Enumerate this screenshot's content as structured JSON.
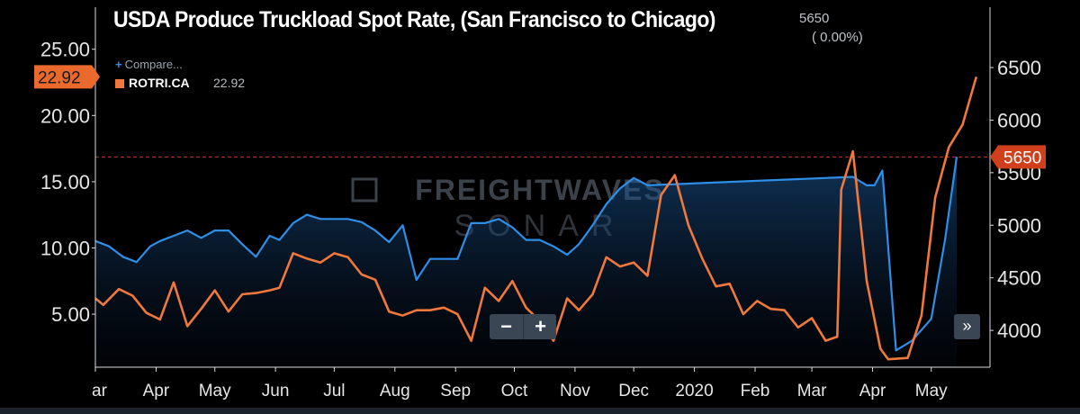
{
  "title": "USDA Produce Truckload Spot Rate, (San Francisco to Chicago)",
  "header_value": "5650",
  "header_change": "( 0.00%)",
  "legend": {
    "compare_label": "Compare...",
    "series_name": "ROTRI.CA",
    "series_value": "22.92"
  },
  "watermark": {
    "line1": "FREIGHTWAVES",
    "line2": "SONAR"
  },
  "controls": {
    "zoom_out": "−",
    "zoom_in": "+",
    "fast_forward": "»"
  },
  "colors": {
    "background": "#000000",
    "blue_series": "#2f8ee6",
    "orange_series": "#f0783c",
    "orange_badge": "#ea6a2e",
    "red_badge": "#d0401c",
    "reference_line": "#c0392b",
    "axis": "#dcdcdc",
    "tick_text": "#e6e6e6"
  },
  "chart_data": {
    "type": "line",
    "title": "USDA Produce Truckload Spot Rate, (San Francisco to Chicago)",
    "x_tick_labels": [
      "ar",
      "Apr",
      "May",
      "Jun",
      "Jul",
      "Aug",
      "Sep",
      "Oct",
      "Nov",
      "Dec",
      "2020",
      "Feb",
      "Mar",
      "Apr",
      "May"
    ],
    "x_tick_dates": [
      "2019-03-01",
      "2019-04-01",
      "2019-05-01",
      "2019-06-01",
      "2019-07-01",
      "2019-08-01",
      "2019-09-01",
      "2019-10-01",
      "2019-11-01",
      "2019-12-01",
      "2020-01-01",
      "2020-02-01",
      "2020-03-01",
      "2020-04-01",
      "2020-05-01"
    ],
    "x_range": [
      "2019-03-01",
      "2020-05-31"
    ],
    "left_axis": {
      "ticks": [
        "5.00",
        "10.00",
        "15.00",
        "20.00",
        "25.00"
      ],
      "range": [
        1.0,
        26.0
      ]
    },
    "right_axis": {
      "ticks": [
        "4000",
        "4500",
        "5000",
        "5500",
        "6000",
        "6500"
      ],
      "range": [
        3650,
        6800
      ]
    },
    "current_left_label": "22.92",
    "current_left_value": 22.92,
    "current_right_label": "5650",
    "current_right_value": 5650,
    "reference_line_value": 5650,
    "grid": false,
    "series": [
      {
        "name": "ROTRI.CA",
        "axis": "left",
        "color": "#f0783c",
        "points": [
          {
            "x": "2019-03-01",
            "y": 6.2
          },
          {
            "x": "2019-03-05",
            "y": 5.7
          },
          {
            "x": "2019-03-13",
            "y": 6.9
          },
          {
            "x": "2019-03-20",
            "y": 6.4
          },
          {
            "x": "2019-03-27",
            "y": 5.1
          },
          {
            "x": "2019-04-03",
            "y": 4.6
          },
          {
            "x": "2019-04-10",
            "y": 7.4
          },
          {
            "x": "2019-04-17",
            "y": 4.1
          },
          {
            "x": "2019-04-24",
            "y": 5.4
          },
          {
            "x": "2019-05-01",
            "y": 6.8
          },
          {
            "x": "2019-05-08",
            "y": 5.2
          },
          {
            "x": "2019-05-15",
            "y": 6.5
          },
          {
            "x": "2019-05-22",
            "y": 6.6
          },
          {
            "x": "2019-05-29",
            "y": 6.8
          },
          {
            "x": "2019-06-03",
            "y": 7.0
          },
          {
            "x": "2019-06-10",
            "y": 9.6
          },
          {
            "x": "2019-06-17",
            "y": 9.2
          },
          {
            "x": "2019-06-24",
            "y": 8.9
          },
          {
            "x": "2019-07-01",
            "y": 9.6
          },
          {
            "x": "2019-07-08",
            "y": 9.3
          },
          {
            "x": "2019-07-15",
            "y": 8.0
          },
          {
            "x": "2019-07-22",
            "y": 7.6
          },
          {
            "x": "2019-07-29",
            "y": 5.2
          },
          {
            "x": "2019-08-05",
            "y": 4.9
          },
          {
            "x": "2019-08-12",
            "y": 5.3
          },
          {
            "x": "2019-08-19",
            "y": 5.3
          },
          {
            "x": "2019-08-26",
            "y": 5.5
          },
          {
            "x": "2019-09-02",
            "y": 5.0
          },
          {
            "x": "2019-09-09",
            "y": 3.0
          },
          {
            "x": "2019-09-16",
            "y": 7.0
          },
          {
            "x": "2019-09-23",
            "y": 6.0
          },
          {
            "x": "2019-09-30",
            "y": 7.5
          },
          {
            "x": "2019-10-07",
            "y": 5.5
          },
          {
            "x": "2019-10-14",
            "y": 4.5
          },
          {
            "x": "2019-10-21",
            "y": 3.0
          },
          {
            "x": "2019-10-28",
            "y": 6.2
          },
          {
            "x": "2019-11-03",
            "y": 5.3
          },
          {
            "x": "2019-11-10",
            "y": 6.5
          },
          {
            "x": "2019-11-17",
            "y": 9.3
          },
          {
            "x": "2019-11-24",
            "y": 8.6
          },
          {
            "x": "2019-12-01",
            "y": 8.9
          },
          {
            "x": "2019-12-08",
            "y": 7.9
          },
          {
            "x": "2019-12-15",
            "y": 14.0
          },
          {
            "x": "2019-12-22",
            "y": 15.5
          },
          {
            "x": "2019-12-29",
            "y": 11.7
          },
          {
            "x": "2020-01-05",
            "y": 9.2
          },
          {
            "x": "2020-01-12",
            "y": 7.1
          },
          {
            "x": "2020-01-19",
            "y": 7.3
          },
          {
            "x": "2020-01-26",
            "y": 5.0
          },
          {
            "x": "2020-02-02",
            "y": 6.0
          },
          {
            "x": "2020-02-09",
            "y": 5.4
          },
          {
            "x": "2020-02-16",
            "y": 5.3
          },
          {
            "x": "2020-02-23",
            "y": 4.0
          },
          {
            "x": "2020-03-01",
            "y": 4.7
          },
          {
            "x": "2020-03-08",
            "y": 3.0
          },
          {
            "x": "2020-03-14",
            "y": 3.3
          },
          {
            "x": "2020-03-16",
            "y": 14.4
          },
          {
            "x": "2020-03-22",
            "y": 17.3
          },
          {
            "x": "2020-03-29",
            "y": 7.5
          },
          {
            "x": "2020-04-05",
            "y": 2.4
          },
          {
            "x": "2020-04-09",
            "y": 1.6
          },
          {
            "x": "2020-04-19",
            "y": 1.7
          },
          {
            "x": "2020-04-26",
            "y": 4.9
          },
          {
            "x": "2020-05-03",
            "y": 13.8
          },
          {
            "x": "2020-05-10",
            "y": 17.6
          },
          {
            "x": "2020-05-17",
            "y": 19.3
          },
          {
            "x": "2020-05-24",
            "y": 22.92
          }
        ]
      },
      {
        "name": "",
        "axis": "right",
        "color": "#2f8ee6",
        "points": [
          {
            "x": "2019-03-01",
            "y": 4850
          },
          {
            "x": "2019-03-08",
            "y": 4800
          },
          {
            "x": "2019-03-15",
            "y": 4700
          },
          {
            "x": "2019-03-22",
            "y": 4650
          },
          {
            "x": "2019-03-29",
            "y": 4800
          },
          {
            "x": "2019-04-03",
            "y": 4850
          },
          {
            "x": "2019-04-10",
            "y": 4900
          },
          {
            "x": "2019-04-17",
            "y": 4950
          },
          {
            "x": "2019-04-24",
            "y": 4880
          },
          {
            "x": "2019-05-01",
            "y": 4950
          },
          {
            "x": "2019-05-08",
            "y": 4950
          },
          {
            "x": "2019-05-15",
            "y": 4820
          },
          {
            "x": "2019-05-22",
            "y": 4700
          },
          {
            "x": "2019-05-29",
            "y": 4900
          },
          {
            "x": "2019-06-03",
            "y": 4860
          },
          {
            "x": "2019-06-10",
            "y": 5020
          },
          {
            "x": "2019-06-17",
            "y": 5100
          },
          {
            "x": "2019-06-24",
            "y": 5060
          },
          {
            "x": "2019-07-01",
            "y": 5060
          },
          {
            "x": "2019-07-08",
            "y": 5060
          },
          {
            "x": "2019-07-15",
            "y": 5030
          },
          {
            "x": "2019-07-22",
            "y": 4950
          },
          {
            "x": "2019-07-29",
            "y": 4840
          },
          {
            "x": "2019-08-05",
            "y": 5000
          },
          {
            "x": "2019-08-12",
            "y": 4480
          },
          {
            "x": "2019-08-19",
            "y": 4680
          },
          {
            "x": "2019-08-26",
            "y": 4680
          },
          {
            "x": "2019-09-02",
            "y": 4680
          },
          {
            "x": "2019-09-09",
            "y": 5020
          },
          {
            "x": "2019-09-16",
            "y": 5020
          },
          {
            "x": "2019-09-23",
            "y": 5060
          },
          {
            "x": "2019-09-30",
            "y": 4980
          },
          {
            "x": "2019-10-07",
            "y": 4860
          },
          {
            "x": "2019-10-14",
            "y": 4860
          },
          {
            "x": "2019-10-21",
            "y": 4800
          },
          {
            "x": "2019-10-28",
            "y": 4720
          },
          {
            "x": "2019-11-03",
            "y": 4820
          },
          {
            "x": "2019-11-10",
            "y": 5000
          },
          {
            "x": "2019-11-17",
            "y": 5200
          },
          {
            "x": "2019-11-24",
            "y": 5350
          },
          {
            "x": "2019-12-01",
            "y": 5450
          },
          {
            "x": "2019-12-08",
            "y": 5380
          },
          {
            "x": "2020-03-22",
            "y": 5460
          },
          {
            "x": "2020-03-29",
            "y": 5380
          },
          {
            "x": "2020-04-02",
            "y": 5380
          },
          {
            "x": "2020-04-06",
            "y": 5520
          },
          {
            "x": "2020-04-13",
            "y": 3810
          },
          {
            "x": "2020-04-21",
            "y": 3900
          },
          {
            "x": "2020-05-01",
            "y": 4110
          },
          {
            "x": "2020-05-08",
            "y": 4860
          },
          {
            "x": "2020-05-14",
            "y": 5650
          }
        ]
      }
    ]
  }
}
